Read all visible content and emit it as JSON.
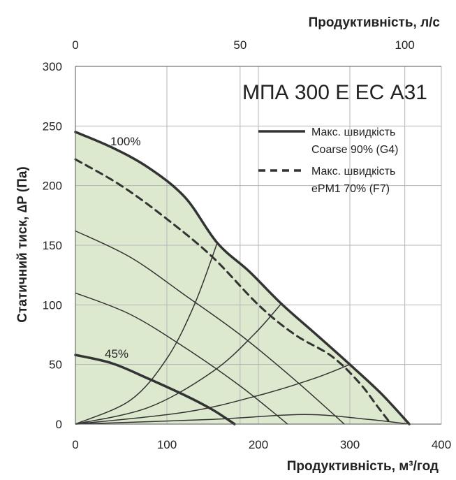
{
  "chart_data": {
    "type": "line",
    "title": "МПА 300 Е ЕС А31",
    "xlabel": "Продуктивність, м³/год",
    "x2label": "Продуктивність, л/с",
    "ylabel": "Статичний тиск, ∆P (Па)",
    "xlim": [
      0,
      400
    ],
    "ylim": [
      0,
      300
    ],
    "x2lim": [
      0,
      111.1
    ],
    "x_ticks": [
      "0",
      "100",
      "200",
      "300",
      "400"
    ],
    "x2_ticks": [
      "0",
      "50",
      "100"
    ],
    "y_ticks": [
      "0",
      "50",
      "100",
      "150",
      "200",
      "250",
      "300"
    ],
    "grid": true,
    "legend_position": "top-right",
    "series": [
      {
        "name": "Макс. швидкість Coarse 90% (G4)",
        "label": "100%",
        "color": "#333333",
        "style": "solid",
        "x": [
          0,
          40,
          80,
          120,
          155,
          190,
          225,
          262,
          300,
          335,
          365
        ],
        "y": [
          245,
          232,
          215,
          190,
          152,
          128,
          101,
          76,
          50,
          25,
          0
        ]
      },
      {
        "name": "Макс. швидкість ePM1 70% (F7)",
        "color": "#333333",
        "style": "dashed",
        "x": [
          0,
          50,
          100,
          150,
          200,
          240,
          280,
          310,
          330,
          345
        ],
        "y": [
          222,
          200,
          172,
          140,
          100,
          75,
          57,
          35,
          15,
          0
        ]
      },
      {
        "label": "45%",
        "color": "#333333",
        "style": "solid",
        "x": [
          0,
          40,
          80,
          120,
          150,
          174
        ],
        "y": [
          58,
          51,
          38,
          24,
          12,
          0
        ]
      },
      {
        "color": "#333333",
        "style": "thin",
        "x": [
          0,
          60,
          120,
          180,
          232
        ],
        "y": [
          110,
          92,
          64,
          32,
          0
        ]
      },
      {
        "color": "#333333",
        "style": "thin",
        "x": [
          0,
          60,
          120,
          180,
          240,
          294
        ],
        "y": [
          162,
          140,
          108,
          75,
          37,
          0
        ]
      }
    ],
    "system_curves": [
      {
        "x": [
          0,
          60,
          100,
          130,
          155
        ],
        "y": [
          0,
          20,
          55,
          100,
          152
        ]
      },
      {
        "x": [
          0,
          80,
          150,
          195,
          225
        ],
        "y": [
          0,
          14,
          44,
          75,
          101
        ]
      },
      {
        "x": [
          0,
          120,
          200,
          260,
          300
        ],
        "y": [
          0,
          10,
          24,
          38,
          50
        ]
      },
      {
        "x": [
          0,
          150,
          250,
          320,
          365
        ],
        "y": [
          0,
          4,
          8,
          4,
          0
        ]
      }
    ],
    "fill_color": "#dde9cf"
  }
}
